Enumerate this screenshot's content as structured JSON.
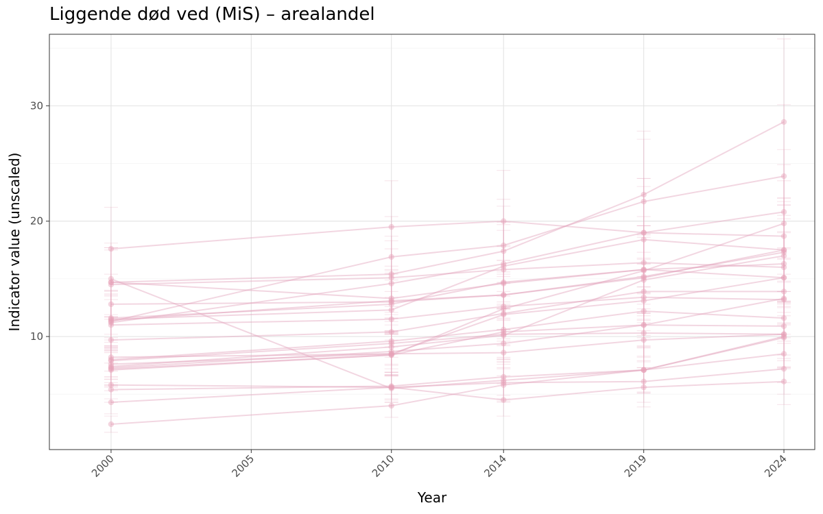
{
  "chart_data": {
    "type": "line",
    "title": "Liggende død ved (MiS) – arealandel",
    "xlabel": "Year",
    "ylabel": "Indicator value (unscaled)",
    "xlim": [
      1997.8,
      2025.1
    ],
    "ylim": [
      0.2,
      36.2
    ],
    "x_ticks": [
      2000,
      2005,
      2010,
      2014,
      2019,
      2024
    ],
    "y_ticks": [
      10,
      20,
      30
    ],
    "grid": true,
    "legend": "none",
    "line_color": "#e3a4bc",
    "point_color": "#e6a2b9",
    "errorbar_color": "#e7aac0",
    "x": [
      2000,
      2010,
      2014,
      2019,
      2024
    ],
    "series": [
      {
        "values": [
          2.4,
          4.0,
          5.8,
          7.1,
          10.0
        ],
        "err": [
          0.7,
          1.0,
          1.5,
          1.9,
          2.8
        ]
      },
      {
        "values": [
          4.3,
          5.6,
          4.5,
          5.6,
          6.1
        ],
        "err": [
          1.0,
          1.0,
          1.4,
          1.7,
          2.0
        ]
      },
      {
        "values": [
          5.4,
          5.7,
          6.5,
          7.1,
          8.5
        ],
        "err": [
          1.1,
          1.2,
          1.6,
          2.0,
          2.5
        ]
      },
      {
        "values": [
          5.8,
          5.6,
          6.0,
          6.1,
          7.2
        ],
        "err": [
          1.2,
          1.3,
          1.6,
          1.8,
          2.2
        ]
      },
      {
        "values": [
          7.1,
          8.4,
          10.4,
          11.0,
          13.3
        ],
        "err": [
          1.5,
          1.8,
          2.4,
          2.8,
          3.4
        ]
      },
      {
        "values": [
          7.3,
          8.7,
          9.4,
          11.0,
          10.9
        ],
        "err": [
          1.5,
          1.8,
          2.2,
          2.7,
          3.0
        ]
      },
      {
        "values": [
          7.6,
          8.5,
          8.6,
          9.7,
          10.2
        ],
        "err": [
          1.6,
          1.8,
          2.0,
          2.4,
          2.8
        ]
      },
      {
        "values": [
          7.9,
          9.4,
          10.2,
          10.3,
          10.2
        ],
        "err": [
          1.6,
          1.9,
          2.2,
          2.5,
          2.9
        ]
      },
      {
        "values": [
          8.2,
          8.5,
          11.9,
          13.1,
          15.1
        ],
        "err": [
          1.7,
          1.9,
          2.7,
          3.2,
          3.9
        ]
      },
      {
        "values": [
          8.0,
          9.6,
          10.6,
          12.2,
          11.6
        ],
        "err": [
          1.7,
          2.0,
          2.4,
          3.0,
          3.2
        ]
      },
      {
        "values": [
          9.7,
          10.4,
          12.0,
          13.9,
          13.9
        ],
        "err": [
          2.0,
          2.2,
          2.7,
          3.4,
          3.7
        ]
      },
      {
        "values": [
          11.0,
          11.5,
          12.6,
          13.4,
          13.2
        ],
        "err": [
          2.2,
          2.4,
          2.8,
          3.3,
          3.6
        ]
      },
      {
        "values": [
          11.4,
          13.1,
          13.6,
          15.2,
          17.3
        ],
        "err": [
          2.3,
          2.7,
          3.0,
          3.7,
          4.4
        ]
      },
      {
        "values": [
          11.6,
          12.8,
          14.7,
          15.8,
          16.3
        ],
        "err": [
          2.4,
          2.6,
          3.2,
          3.8,
          4.2
        ]
      },
      {
        "values": [
          12.8,
          13.0,
          13.6,
          15.1,
          17.5
        ],
        "err": [
          2.6,
          2.7,
          3.0,
          3.7,
          4.5
        ]
      },
      {
        "values": [
          14.5,
          15.1,
          15.8,
          16.4,
          16.0
        ],
        "err": [
          3.0,
          3.2,
          3.4,
          4.0,
          4.2
        ]
      },
      {
        "values": [
          14.7,
          13.3,
          14.6,
          15.8,
          15.1
        ],
        "err": [
          3.0,
          2.8,
          3.2,
          3.8,
          4.0
        ]
      },
      {
        "values": [
          15.0,
          5.5,
          6.2,
          7.1,
          9.9
        ],
        "err": [
          3.1,
          1.2,
          1.6,
          2.0,
          2.6
        ]
      },
      {
        "values": [
          14.7,
          15.4,
          17.4,
          22.3,
          28.6
        ],
        "err": [
          3.0,
          3.3,
          3.9,
          5.5,
          7.2
        ]
      },
      {
        "values": [
          11.2,
          14.6,
          16.3,
          19.0,
          18.7
        ],
        "err": [
          2.3,
          3.0,
          3.6,
          4.7,
          4.8
        ]
      },
      {
        "values": [
          11.3,
          16.9,
          17.9,
          21.7,
          23.9
        ],
        "err": [
          2.3,
          3.5,
          4.0,
          5.4,
          6.2
        ]
      },
      {
        "values": [
          17.6,
          19.5,
          20.0,
          19.0,
          20.8
        ],
        "err": [
          3.6,
          4.0,
          4.4,
          4.7,
          5.4
        ]
      },
      {
        "values": [
          11.5,
          12.3,
          16.1,
          18.4,
          17.5
        ],
        "err": [
          2.4,
          2.6,
          3.6,
          4.6,
          4.5
        ]
      },
      {
        "values": [
          7.2,
          8.4,
          12.4,
          15.7,
          19.8
        ],
        "err": [
          1.5,
          1.8,
          2.8,
          3.9,
          5.1
        ]
      },
      {
        "values": [
          7.4,
          9.1,
          10.1,
          14.9,
          17.0
        ],
        "err": [
          1.6,
          1.9,
          2.3,
          3.7,
          4.4
        ]
      }
    ]
  }
}
